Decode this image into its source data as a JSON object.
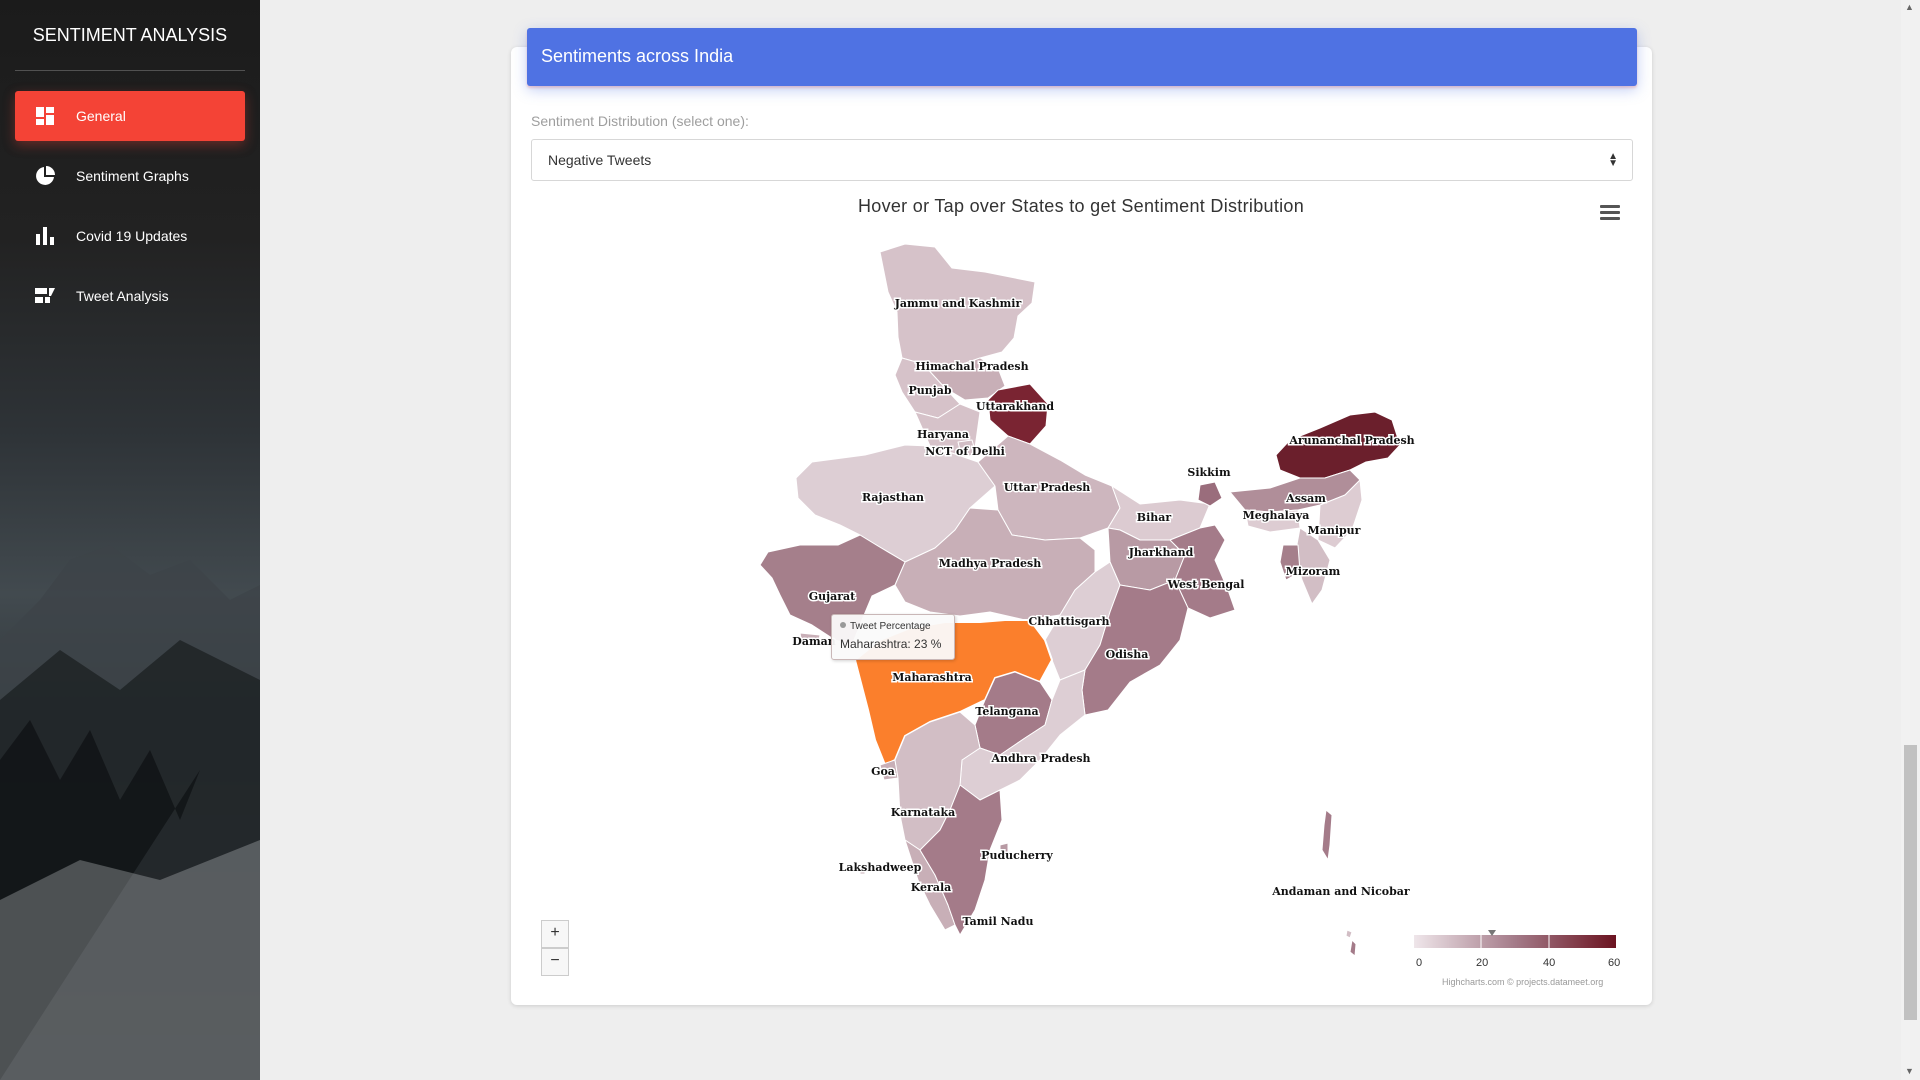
{
  "sidebar": {
    "brand": "SENTIMENT ANALYSIS",
    "items": [
      {
        "label": "General",
        "icon": "dashboard-icon",
        "active": true
      },
      {
        "label": "Sentiment Graphs",
        "icon": "pie-chart-icon"
      },
      {
        "label": "Covid 19 Updates",
        "icon": "bar-chart-icon"
      },
      {
        "label": "Tweet Analysis",
        "icon": "tweet-list-icon"
      }
    ]
  },
  "card": {
    "header": "Sentiments across India",
    "select_label": "Sentiment Distribution (select one):",
    "select_value": "Negative Tweets",
    "chart_title": "Hover or Tap over States to get Sentiment Distribution"
  },
  "tooltip": {
    "series": "Tweet Percentage",
    "text": "Maharashtra: 23 %"
  },
  "zoom": {
    "in": "+",
    "out": "−"
  },
  "credits": "Highcharts.com © projects.datameet.org",
  "colors": {
    "accent": "#f44336",
    "header": "#4f72e3",
    "hover": "#fb7f2c",
    "scale_min": "#efe6ea",
    "scale_max": "#6b1320"
  },
  "chart_data": {
    "type": "map",
    "series": "Tweet Percentage",
    "color_axis": {
      "min": 0,
      "max": 60,
      "ticks": [
        0,
        20,
        40,
        60
      ]
    },
    "hovered": {
      "state": "Maharashtra",
      "value": 23
    },
    "states": [
      "Jammu and Kashmir",
      "Himachal Pradesh",
      "Punjab",
      "Uttarakhand",
      "Haryana",
      "NCT of Delhi",
      "Rajasthan",
      "Uttar Pradesh",
      "Arunanchal Pradesh",
      "Sikkim",
      "Assam",
      "Meghalaya",
      "Manipur",
      "Bihar",
      "Jharkhand",
      "Madhya Pradesh",
      "Mizoram",
      "West Bengal",
      "Gujarat",
      "Daman",
      "Chhattisgarh",
      "Odisha",
      "Maharashtra",
      "Telangana",
      "Goa",
      "Andhra Pradesh",
      "Karnataka",
      "Puducherry",
      "Lakshadweep",
      "Kerala",
      "Tamil Nadu",
      "Andaman and Nicobar"
    ]
  }
}
